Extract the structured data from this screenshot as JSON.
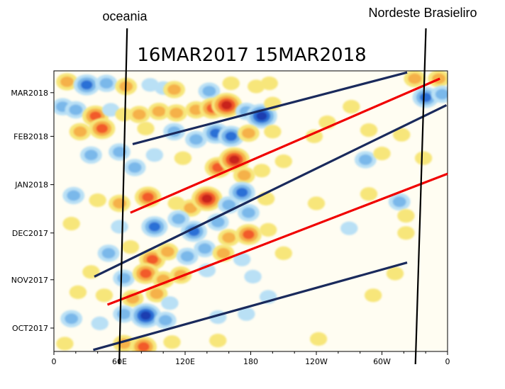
{
  "chart_data": {
    "type": "heatmap",
    "title": "16MAR2017 15MAR2018",
    "xlabel": "",
    "ylabel": "",
    "x_ticks": [
      "0",
      "60E",
      "120E",
      "180",
      "120W",
      "60W",
      "0"
    ],
    "x_tick_positions_deg": [
      0,
      60,
      120,
      180,
      240,
      300,
      360
    ],
    "xlim": [
      0,
      360
    ],
    "y_ticks": [
      "OCT2017",
      "NOV2017",
      "DEC2017",
      "JAN2018",
      "FEB2018",
      "MAR2018"
    ],
    "y_tick_dates": [
      "2017-10-01",
      "2017-11-01",
      "2017-12-01",
      "2018-01-01",
      "2018-02-01",
      "2018-03-01"
    ],
    "ylim": [
      "2017-09-16",
      "2018-03-15"
    ],
    "grid": false,
    "colors": {
      "warm_light": "#f7e67a",
      "warm_mid": "#f5b14a",
      "warm_strong": "#f25a2b",
      "warm_max": "#c8201e",
      "cold_light": "#b9e0f5",
      "cold_mid": "#7ab8ea",
      "cold_strong": "#2c6fd6",
      "cold_max": "#1f3cb0",
      "red_line": "#f00000",
      "blue_line": "#1a2a5c",
      "black_line": "#000000"
    },
    "anomaly_blobs": [
      {
        "lon": 12,
        "date": "2018-03-08",
        "value": 2
      },
      {
        "lon": 30,
        "date": "2018-03-06",
        "value": -3
      },
      {
        "lon": 48,
        "date": "2018-03-07",
        "value": -2
      },
      {
        "lon": 66,
        "date": "2018-03-05",
        "value": 2
      },
      {
        "lon": 88,
        "date": "2018-03-06",
        "value": -1
      },
      {
        "lon": 100,
        "date": "2018-03-04",
        "value": -1
      },
      {
        "lon": 110,
        "date": "2018-03-03",
        "value": 2
      },
      {
        "lon": 142,
        "date": "2018-03-02",
        "value": -2
      },
      {
        "lon": 162,
        "date": "2018-03-07",
        "value": 1
      },
      {
        "lon": 185,
        "date": "2018-03-05",
        "value": 1
      },
      {
        "lon": 197,
        "date": "2018-03-07",
        "value": 1
      },
      {
        "lon": 330,
        "date": "2018-03-10",
        "value": 2
      },
      {
        "lon": 352,
        "date": "2018-03-10",
        "value": 2
      },
      {
        "lon": 8,
        "date": "2018-02-20",
        "value": -2
      },
      {
        "lon": 20,
        "date": "2018-02-18",
        "value": -2
      },
      {
        "lon": 38,
        "date": "2018-02-14",
        "value": 3
      },
      {
        "lon": 52,
        "date": "2018-02-18",
        "value": -1
      },
      {
        "lon": 64,
        "date": "2018-02-15",
        "value": 1
      },
      {
        "lon": 78,
        "date": "2018-02-15",
        "value": 2
      },
      {
        "lon": 96,
        "date": "2018-02-17",
        "value": 2
      },
      {
        "lon": 112,
        "date": "2018-02-16",
        "value": 2
      },
      {
        "lon": 130,
        "date": "2018-02-18",
        "value": 2
      },
      {
        "lon": 145,
        "date": "2018-02-19",
        "value": 3
      },
      {
        "lon": 158,
        "date": "2018-02-21",
        "value": 4
      },
      {
        "lon": 176,
        "date": "2018-02-17",
        "value": -2
      },
      {
        "lon": 190,
        "date": "2018-02-14",
        "value": -4
      },
      {
        "lon": 200,
        "date": "2018-02-22",
        "value": 1
      },
      {
        "lon": 250,
        "date": "2018-02-10",
        "value": 1
      },
      {
        "lon": 272,
        "date": "2018-02-20",
        "value": 1
      },
      {
        "lon": 340,
        "date": "2018-02-26",
        "value": -3
      },
      {
        "lon": 355,
        "date": "2018-02-28",
        "value": -2
      },
      {
        "lon": 24,
        "date": "2018-02-04",
        "value": 2
      },
      {
        "lon": 44,
        "date": "2018-02-06",
        "value": 3
      },
      {
        "lon": 84,
        "date": "2018-02-06",
        "value": 1
      },
      {
        "lon": 110,
        "date": "2018-02-04",
        "value": -2
      },
      {
        "lon": 130,
        "date": "2018-01-30",
        "value": -2
      },
      {
        "lon": 148,
        "date": "2018-02-03",
        "value": -3
      },
      {
        "lon": 162,
        "date": "2018-02-01",
        "value": -3
      },
      {
        "lon": 178,
        "date": "2018-02-03",
        "value": 2
      },
      {
        "lon": 200,
        "date": "2018-02-04",
        "value": 1
      },
      {
        "lon": 238,
        "date": "2018-02-01",
        "value": 1
      },
      {
        "lon": 288,
        "date": "2018-02-05",
        "value": 1
      },
      {
        "lon": 318,
        "date": "2018-02-02",
        "value": 1
      },
      {
        "lon": 34,
        "date": "2018-01-20",
        "value": -2
      },
      {
        "lon": 60,
        "date": "2018-01-22",
        "value": -2
      },
      {
        "lon": 74,
        "date": "2018-01-12",
        "value": -2
      },
      {
        "lon": 92,
        "date": "2018-01-20",
        "value": -1
      },
      {
        "lon": 118,
        "date": "2018-01-18",
        "value": 1
      },
      {
        "lon": 150,
        "date": "2018-01-12",
        "value": 3
      },
      {
        "lon": 165,
        "date": "2018-01-17",
        "value": 4
      },
      {
        "lon": 174,
        "date": "2018-01-07",
        "value": 2
      },
      {
        "lon": 190,
        "date": "2018-01-10",
        "value": 1
      },
      {
        "lon": 210,
        "date": "2018-01-16",
        "value": 1
      },
      {
        "lon": 285,
        "date": "2018-01-17",
        "value": -2
      },
      {
        "lon": 300,
        "date": "2018-01-21",
        "value": 1
      },
      {
        "lon": 338,
        "date": "2018-01-18",
        "value": 1
      },
      {
        "lon": 18,
        "date": "2017-12-25",
        "value": -2
      },
      {
        "lon": 40,
        "date": "2017-12-22",
        "value": 1
      },
      {
        "lon": 60,
        "date": "2017-12-20",
        "value": 2
      },
      {
        "lon": 86,
        "date": "2017-12-24",
        "value": 3
      },
      {
        "lon": 112,
        "date": "2017-12-20",
        "value": 1
      },
      {
        "lon": 125,
        "date": "2017-12-17",
        "value": 2
      },
      {
        "lon": 140,
        "date": "2017-12-23",
        "value": 4
      },
      {
        "lon": 160,
        "date": "2017-12-19",
        "value": -2
      },
      {
        "lon": 172,
        "date": "2017-12-27",
        "value": -3
      },
      {
        "lon": 178,
        "date": "2017-12-14",
        "value": -2
      },
      {
        "lon": 194,
        "date": "2017-12-23",
        "value": 1
      },
      {
        "lon": 240,
        "date": "2017-12-20",
        "value": 1
      },
      {
        "lon": 288,
        "date": "2017-12-26",
        "value": 1
      },
      {
        "lon": 316,
        "date": "2017-12-21",
        "value": -2
      },
      {
        "lon": 322,
        "date": "2017-12-12",
        "value": 1
      },
      {
        "lon": 16,
        "date": "2017-12-07",
        "value": 1
      },
      {
        "lon": 60,
        "date": "2017-12-05",
        "value": -1
      },
      {
        "lon": 92,
        "date": "2017-12-05",
        "value": -3
      },
      {
        "lon": 114,
        "date": "2017-12-10",
        "value": -2
      },
      {
        "lon": 128,
        "date": "2017-12-02",
        "value": -3
      },
      {
        "lon": 150,
        "date": "2017-12-08",
        "value": -2
      },
      {
        "lon": 160,
        "date": "2017-11-28",
        "value": 2
      },
      {
        "lon": 178,
        "date": "2017-11-30",
        "value": 3
      },
      {
        "lon": 196,
        "date": "2017-12-03",
        "value": 1
      },
      {
        "lon": 270,
        "date": "2017-12-04",
        "value": -1
      },
      {
        "lon": 322,
        "date": "2017-12-01",
        "value": 1
      },
      {
        "lon": 50,
        "date": "2017-11-18",
        "value": -2
      },
      {
        "lon": 70,
        "date": "2017-11-22",
        "value": 1
      },
      {
        "lon": 90,
        "date": "2017-11-14",
        "value": 3
      },
      {
        "lon": 104,
        "date": "2017-11-19",
        "value": 2
      },
      {
        "lon": 122,
        "date": "2017-11-16",
        "value": -2
      },
      {
        "lon": 138,
        "date": "2017-11-21",
        "value": -2
      },
      {
        "lon": 155,
        "date": "2017-11-18",
        "value": 2
      },
      {
        "lon": 172,
        "date": "2017-11-14",
        "value": -1
      },
      {
        "lon": 210,
        "date": "2017-11-18",
        "value": 1
      },
      {
        "lon": 34,
        "date": "2017-11-06",
        "value": 1
      },
      {
        "lon": 64,
        "date": "2017-11-02",
        "value": -2
      },
      {
        "lon": 84,
        "date": "2017-11-05",
        "value": 3
      },
      {
        "lon": 100,
        "date": "2017-11-01",
        "value": 2
      },
      {
        "lon": 116,
        "date": "2017-11-04",
        "value": 2
      },
      {
        "lon": 140,
        "date": "2017-11-07",
        "value": -1
      },
      {
        "lon": 182,
        "date": "2017-11-03",
        "value": -1
      },
      {
        "lon": 312,
        "date": "2017-11-05",
        "value": 1
      },
      {
        "lon": 22,
        "date": "2017-10-24",
        "value": 1
      },
      {
        "lon": 46,
        "date": "2017-10-22",
        "value": 1
      },
      {
        "lon": 72,
        "date": "2017-10-20",
        "value": 2
      },
      {
        "lon": 94,
        "date": "2017-10-23",
        "value": 2
      },
      {
        "lon": 106,
        "date": "2017-10-17",
        "value": -1
      },
      {
        "lon": 196,
        "date": "2017-10-21",
        "value": -1
      },
      {
        "lon": 292,
        "date": "2017-10-22",
        "value": 1
      },
      {
        "lon": 16,
        "date": "2017-10-07",
        "value": -2
      },
      {
        "lon": 42,
        "date": "2017-10-04",
        "value": -1
      },
      {
        "lon": 64,
        "date": "2017-10-10",
        "value": -2
      },
      {
        "lon": 84,
        "date": "2017-10-09",
        "value": -4
      },
      {
        "lon": 102,
        "date": "2017-10-06",
        "value": -2
      },
      {
        "lon": 150,
        "date": "2017-10-08",
        "value": -1
      },
      {
        "lon": 176,
        "date": "2017-10-10",
        "value": -1
      },
      {
        "lon": 64,
        "date": "2017-09-21",
        "value": 2
      },
      {
        "lon": 82,
        "date": "2017-09-19",
        "value": 3
      },
      {
        "lon": 108,
        "date": "2017-09-22",
        "value": 1
      },
      {
        "lon": 150,
        "date": "2017-09-23",
        "value": 1
      },
      {
        "lon": 242,
        "date": "2017-09-24",
        "value": 1
      },
      {
        "lon": 10,
        "date": "2017-09-21",
        "value": 1
      }
    ],
    "annotation_lines": [
      {
        "kind": "phase",
        "color": "blue",
        "start": {
          "lon": 36,
          "date": "2017-09-17"
        },
        "end": {
          "lon": 323,
          "date": "2017-11-12"
        }
      },
      {
        "kind": "phase",
        "color": "red",
        "start": {
          "lon": 49,
          "date": "2017-10-16"
        },
        "end": {
          "lon": 360,
          "date": "2018-01-08"
        }
      },
      {
        "kind": "phase",
        "color": "blue",
        "start": {
          "lon": 37,
          "date": "2017-11-03"
        },
        "end": {
          "lon": 359,
          "date": "2018-02-21"
        }
      },
      {
        "kind": "phase",
        "color": "red",
        "start": {
          "lon": 70,
          "date": "2017-12-14"
        },
        "end": {
          "lon": 353,
          "date": "2018-03-10"
        }
      },
      {
        "kind": "phase",
        "color": "blue",
        "start": {
          "lon": 72,
          "date": "2018-01-27"
        },
        "end": {
          "lon": 323,
          "date": "2018-03-14"
        }
      },
      {
        "kind": "region-boundary",
        "color": "black",
        "label_key": "oceania",
        "start": {
          "lon": 60,
          "date": "2017-09-16"
        },
        "end": {
          "lon": 66,
          "date": "2018-03-15"
        }
      },
      {
        "kind": "region-boundary",
        "color": "black",
        "label_key": "nordeste",
        "start": {
          "lon": 331,
          "date": "2017-09-16"
        },
        "end": {
          "lon": 339,
          "date": "2018-03-15"
        }
      }
    ],
    "annotations": {
      "oceania": "oceania",
      "nordeste": "Nordeste Brasieliro"
    }
  }
}
